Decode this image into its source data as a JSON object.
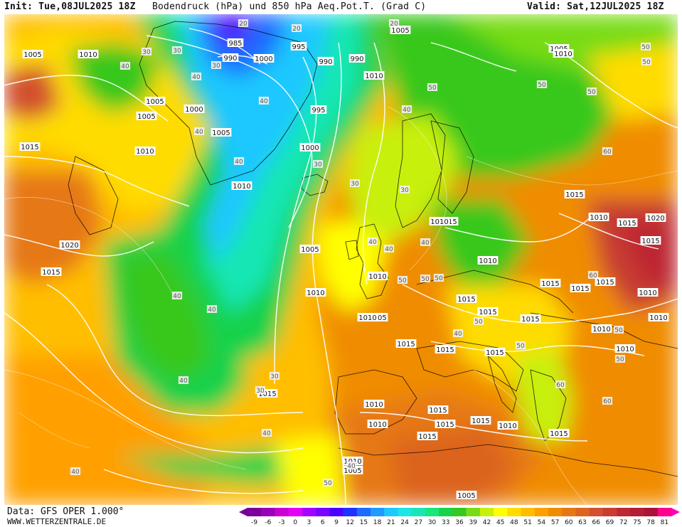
{
  "header": {
    "init": "Init: Tue,08JUL2025 18Z",
    "title": "Bodendruck (hPa) und 850 hPa Aeq.Pot.T. (Grad C)",
    "valid": "Valid: Sat,12JUL2025 18Z"
  },
  "footer": {
    "data_source": "Data: GFS OPER 1.000°",
    "website": "WWW.WETTERZENTRALE.DE"
  },
  "legend": {
    "values": [
      "-9",
      "-6",
      "-3",
      "0",
      "3",
      "6",
      "9",
      "12",
      "15",
      "18",
      "21",
      "24",
      "27",
      "30",
      "33",
      "36",
      "39",
      "42",
      "45",
      "48",
      "51",
      "54",
      "57",
      "60",
      "63",
      "66",
      "69",
      "72",
      "75",
      "78",
      "81"
    ],
    "colors": [
      "#7a0099",
      "#9a00b8",
      "#c800d6",
      "#e600f2",
      "#a300ff",
      "#7a00ff",
      "#4b00ff",
      "#1e32ff",
      "#1e6bff",
      "#1e9bff",
      "#1ec8ff",
      "#19e6e6",
      "#19e6b4",
      "#19e67d",
      "#19d24b",
      "#37c81e",
      "#78dc14",
      "#c8f00a",
      "#ffff00",
      "#ffdc00",
      "#ffbe00",
      "#ffa000",
      "#f08c00",
      "#e67814",
      "#dc641e",
      "#d2502d",
      "#c83c32",
      "#be2832",
      "#b41e32",
      "#aa1437",
      "#ff0090"
    ],
    "left_arrow_color": "#7a0099",
    "right_arrow_color": "#ff00b4"
  },
  "map": {
    "pressure_labels": [
      "985",
      "990",
      "1000",
      "995",
      "990",
      "990",
      "995",
      "1000",
      "1005",
      "1005",
      "1010",
      "1010",
      "1005",
      "1005",
      "1010",
      "1015",
      "1010",
      "1015",
      "1020",
      "1005",
      "1010",
      "1005",
      "1010",
      "1010",
      "1015",
      "1010",
      "1015",
      "1015",
      "1010",
      "1015",
      "1015",
      "1015",
      "1015",
      "1015",
      "1015",
      "1020",
      "1015",
      "1010",
      "1005",
      "1010",
      "1010",
      "1015",
      "1010",
      "1010",
      "1015",
      "1015",
      "1015",
      "1015",
      "1010",
      "1010",
      "1015",
      "1015",
      "1010",
      "1005",
      "1005",
      "1000",
      "1005",
      "1010",
      "1015",
      "1010",
      "1015"
    ],
    "theta_labels": [
      "20",
      "20",
      "20",
      "30",
      "30",
      "30",
      "40",
      "40",
      "40",
      "40",
      "50",
      "50",
      "50",
      "50",
      "50",
      "40",
      "40",
      "30",
      "30",
      "30",
      "40",
      "40",
      "40",
      "50",
      "50",
      "50",
      "60",
      "60",
      "50",
      "40",
      "50",
      "50",
      "60",
      "60",
      "50",
      "40",
      "40",
      "40",
      "30",
      "30",
      "40",
      "40",
      "50",
      "50",
      "40"
    ]
  }
}
